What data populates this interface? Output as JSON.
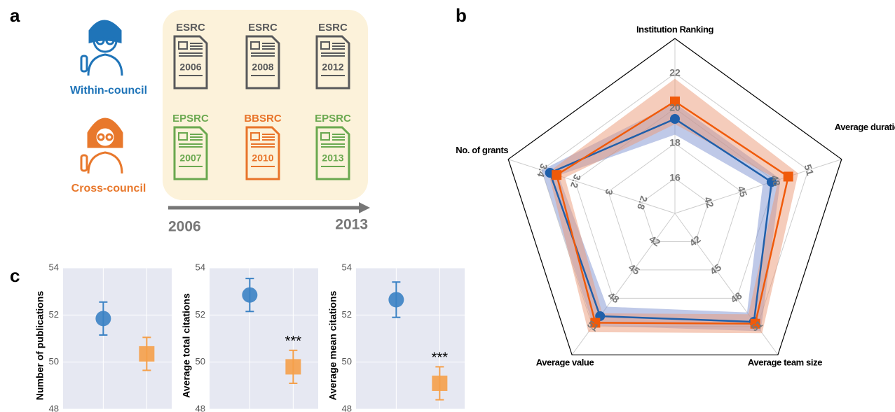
{
  "panel_labels": [
    "a",
    "b",
    "c"
  ],
  "diagram": {
    "groups": [
      {
        "label": "Within-council",
        "color": "#1f74b8",
        "docs": [
          {
            "council": "ESRC",
            "year": "2006",
            "color": "#58595b"
          },
          {
            "council": "ESRC",
            "year": "2008",
            "color": "#58595b"
          },
          {
            "council": "ESRC",
            "year": "2012",
            "color": "#58595b"
          }
        ]
      },
      {
        "label": "Cross-council",
        "color": "#e8782c",
        "docs": [
          {
            "council": "EPSRC",
            "year": "2007",
            "color": "#6aa84f"
          },
          {
            "council": "BBSRC",
            "year": "2010",
            "color": "#e8742a"
          },
          {
            "council": "EPSRC",
            "year": "2013",
            "color": "#6aa84f"
          }
        ]
      }
    ],
    "timeline": [
      "2006",
      "2013"
    ]
  },
  "chart_data": [
    {
      "type": "radar",
      "axes": [
        {
          "label": "Institution Ranking",
          "rlim": [
            14,
            24
          ],
          "ticks": [
            16,
            18,
            20,
            22
          ]
        },
        {
          "label": "Average duration",
          "rlim": [
            39,
            54
          ],
          "ticks": [
            42,
            45,
            48,
            51
          ]
        },
        {
          "label": "Average team size",
          "rlim": [
            39,
            54
          ],
          "ticks": [
            42,
            45,
            48,
            51
          ]
        },
        {
          "label": "Average value",
          "rlim": [
            39,
            54
          ],
          "ticks": [
            42,
            45,
            48,
            51
          ]
        },
        {
          "label": "No. of grants",
          "rlim": [
            2.6,
            3.6
          ],
          "ticks": [
            2.8,
            3.0,
            3.2,
            3.4
          ]
        }
      ],
      "series": [
        {
          "color": "#1f5faa",
          "band_color": "#7f93d2",
          "marker": "circle",
          "values": [
            19.4,
            47.7,
            50.5,
            49.9,
            3.35
          ],
          "errors": [
            0.9,
            0.8,
            1.0,
            1.0,
            0.05
          ]
        },
        {
          "color": "#f05a0a",
          "band_color": "#eb9a78",
          "marker": "square",
          "values": [
            20.4,
            49.2,
            50.7,
            50.6,
            3.31
          ],
          "errors": [
            1.3,
            0.9,
            1.0,
            1.0,
            0.05
          ]
        }
      ]
    },
    {
      "type": "scatter",
      "ylabel": "Number of publications",
      "categories": [
        null,
        null
      ],
      "values": [
        51.85,
        50.35
      ],
      "errors": [
        0.7,
        0.7
      ],
      "colors": [
        "#3b82c4",
        "#f5a04a"
      ],
      "markers": [
        "circle",
        "square"
      ],
      "annotations": [
        null,
        null
      ],
      "ylim": [
        48,
        54
      ],
      "yticks": [
        48,
        50,
        52,
        54
      ],
      "grid": true
    },
    {
      "type": "scatter",
      "ylabel": "Average total citations",
      "categories": [
        null,
        null
      ],
      "values": [
        52.85,
        49.8
      ],
      "errors": [
        0.7,
        0.7
      ],
      "colors": [
        "#3b82c4",
        "#f5a04a"
      ],
      "markers": [
        "circle",
        "square"
      ],
      "annotations": [
        null,
        "***"
      ],
      "ylim": [
        48,
        54
      ],
      "yticks": [
        48,
        50,
        52,
        54
      ],
      "grid": true
    },
    {
      "type": "scatter",
      "ylabel": "Average mean citations",
      "categories": [
        null,
        null
      ],
      "values": [
        52.65,
        49.1
      ],
      "errors": [
        0.75,
        0.7
      ],
      "colors": [
        "#3b82c4",
        "#f5a04a"
      ],
      "markers": [
        "circle",
        "square"
      ],
      "annotations": [
        null,
        "***"
      ],
      "ylim": [
        48,
        54
      ],
      "yticks": [
        48,
        50,
        52,
        54
      ],
      "grid": true
    }
  ]
}
